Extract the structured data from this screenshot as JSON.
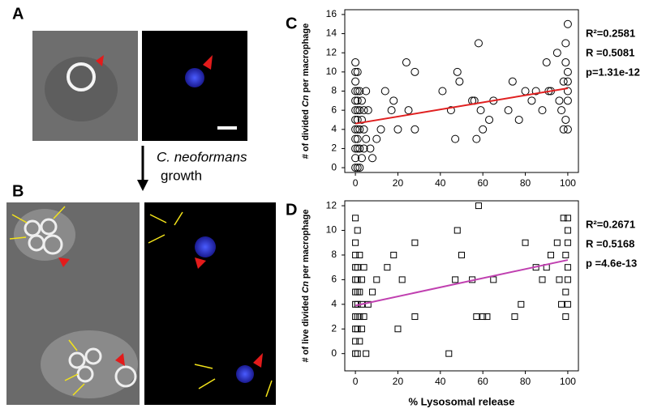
{
  "figure": {
    "panel_a": "A",
    "panel_b": "B",
    "organism": "C. neoformans",
    "growth": "growth"
  },
  "chart_data": [
    {
      "type": "scatter",
      "panel": "C",
      "marker": "circle",
      "color": "#000000",
      "ylabel": [
        "# of divided ",
        "Cn",
        " per macrophage"
      ],
      "xlim": [
        -5,
        105
      ],
      "ylim": [
        -0.5,
        16.5
      ],
      "xticks": [
        0,
        20,
        40,
        60,
        80,
        100
      ],
      "yticks": [
        0,
        2,
        4,
        6,
        8,
        10,
        12,
        14,
        16
      ],
      "annotations": [
        "R²=0.2581",
        "R =0.5081",
        "p=1.31e-12"
      ],
      "x": [
        0,
        0,
        0,
        0,
        0,
        0,
        0,
        0,
        0,
        0,
        0,
        0,
        1,
        1,
        1,
        1,
        1,
        1,
        1,
        1,
        1,
        2,
        2,
        2,
        2,
        2,
        3,
        3,
        3,
        4,
        4,
        4,
        5,
        5,
        6,
        7,
        8,
        10,
        12,
        14,
        17,
        18,
        20,
        24,
        25,
        28,
        28,
        41,
        45,
        47,
        48,
        49,
        55,
        56,
        57,
        58,
        59,
        60,
        63,
        65,
        72,
        74,
        77,
        80,
        83,
        85,
        88,
        90,
        91,
        92,
        95,
        96,
        97,
        98,
        98,
        99,
        99,
        99,
        100,
        100,
        100,
        100,
        100,
        100
      ],
      "values": [
        0,
        1,
        2,
        3,
        4,
        5,
        6,
        7,
        8,
        9,
        10,
        11,
        0,
        2,
        3,
        4,
        5,
        6,
        7,
        8,
        10,
        0,
        2,
        4,
        6,
        8,
        1,
        5,
        7,
        2,
        4,
        6,
        3,
        8,
        6,
        2,
        1,
        3,
        4,
        8,
        6,
        7,
        4,
        11,
        6,
        4,
        10,
        8,
        6,
        3,
        10,
        9,
        7,
        7,
        3,
        13,
        6,
        4,
        5,
        7,
        6,
        9,
        5,
        8,
        7,
        8,
        6,
        11,
        8,
        8,
        12,
        7,
        6,
        9,
        4,
        11,
        5,
        13,
        15,
        4,
        7,
        8,
        10,
        9
      ],
      "fit": {
        "x": [
          0,
          100
        ],
        "values": [
          4.6,
          8.3
        ],
        "color": "#e02020"
      }
    },
    {
      "type": "scatter",
      "panel": "D",
      "marker": "square",
      "color": "#000000",
      "ylabel": [
        "# of live divided ",
        "Cn",
        " per macrophage"
      ],
      "xlabel": "% Lysosomal release",
      "xlim": [
        -5,
        105
      ],
      "ylim": [
        -1.4,
        12.4
      ],
      "xticks": [
        0,
        20,
        40,
        60,
        80,
        100
      ],
      "yticks": [
        0,
        2,
        4,
        6,
        8,
        10,
        12
      ],
      "annotations": [
        "R²=0.2671",
        "R =0.5168",
        "p =4.6e-13"
      ],
      "x": [
        0,
        0,
        0,
        0,
        0,
        0,
        0,
        0,
        0,
        0,
        0,
        1,
        1,
        1,
        1,
        1,
        1,
        1,
        1,
        2,
        2,
        2,
        2,
        3,
        3,
        3,
        4,
        4,
        5,
        6,
        8,
        10,
        15,
        18,
        20,
        22,
        28,
        28,
        44,
        47,
        48,
        50,
        55,
        57,
        58,
        60,
        62,
        65,
        75,
        78,
        80,
        85,
        88,
        90,
        92,
        95,
        96,
        97,
        98,
        99,
        99,
        99,
        100,
        100,
        100,
        100,
        100,
        100
      ],
      "values": [
        0,
        1,
        2,
        3,
        4,
        5,
        6,
        7,
        8,
        9,
        11,
        0,
        2,
        3,
        4,
        5,
        6,
        7,
        10,
        1,
        3,
        5,
        8,
        2,
        4,
        6,
        3,
        7,
        0,
        4,
        5,
        6,
        7,
        8,
        2,
        6,
        3,
        9,
        0,
        6,
        10,
        8,
        6,
        3,
        12,
        3,
        3,
        6,
        3,
        4,
        9,
        7,
        6,
        7,
        8,
        9,
        6,
        4,
        11,
        3,
        5,
        8,
        11,
        7,
        4,
        6,
        9,
        10
      ],
      "fit": {
        "x": [
          0,
          100
        ],
        "values": [
          3.9,
          7.6
        ],
        "color": "#c040b0"
      }
    }
  ]
}
